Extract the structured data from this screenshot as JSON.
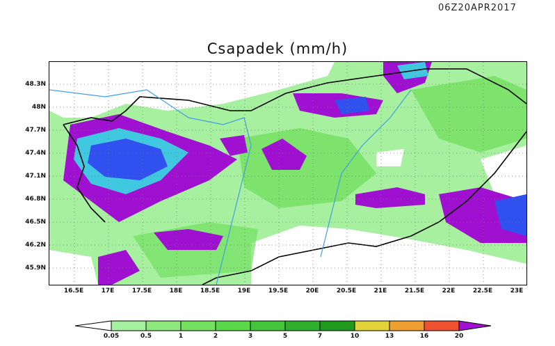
{
  "header": {
    "timestamp": "06Z20APR2017"
  },
  "map": {
    "title": "Csapadek (mm/h)",
    "lat_labels": [
      "48.3N",
      "48N",
      "47.7N",
      "47.4N",
      "47.1N",
      "46.8N",
      "46.5N",
      "46.2N",
      "45.9N"
    ],
    "lon_labels": [
      "16.5E",
      "17E",
      "17.5E",
      "18E",
      "18.5E",
      "19E",
      "19.5E",
      "20E",
      "20.5E",
      "21E",
      "21.5E",
      "22E",
      "22.5E",
      "23E"
    ]
  },
  "colorbar": {
    "labels": [
      "0.05",
      "0.5",
      "1",
      "2",
      "3",
      "5",
      "7",
      "10",
      "13",
      "16",
      "20"
    ],
    "colors": [
      "#a6f0a0",
      "#8ee87e",
      "#73e05f",
      "#5ad84a",
      "#43c43a",
      "#2fb02c",
      "#1f9a1e",
      "#e2d33a",
      "#f0a030",
      "#ee5030",
      "#a010d0"
    ]
  }
}
